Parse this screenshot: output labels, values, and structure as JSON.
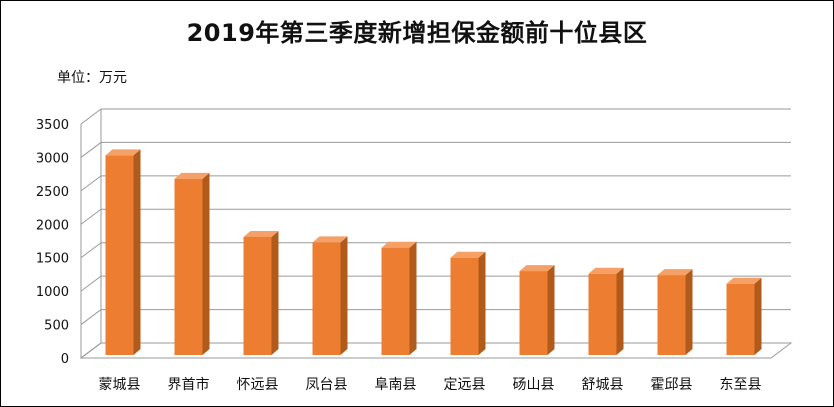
{
  "chart_data": {
    "type": "bar",
    "title": "2019年第三季度新增担保金额前十位县区",
    "unit_label": "单位：万元",
    "categories": [
      "蒙城县",
      "界首市",
      "怀远县",
      "凤台县",
      "阜南县",
      "定远县",
      "砀山县",
      "舒城县",
      "霍邱县",
      "东至县"
    ],
    "values": [
      3000,
      2650,
      1780,
      1700,
      1620,
      1470,
      1270,
      1230,
      1210,
      1080
    ],
    "ylim": [
      0,
      3500
    ],
    "yticks": [
      0,
      500,
      1000,
      1500,
      2000,
      2500,
      3000,
      3500
    ],
    "grid": true,
    "legend": "none",
    "bar_color": "#ED7D31",
    "bar_side_color": "#B05A1C",
    "bar_top_color": "#F4A066",
    "style": "3d-column"
  }
}
